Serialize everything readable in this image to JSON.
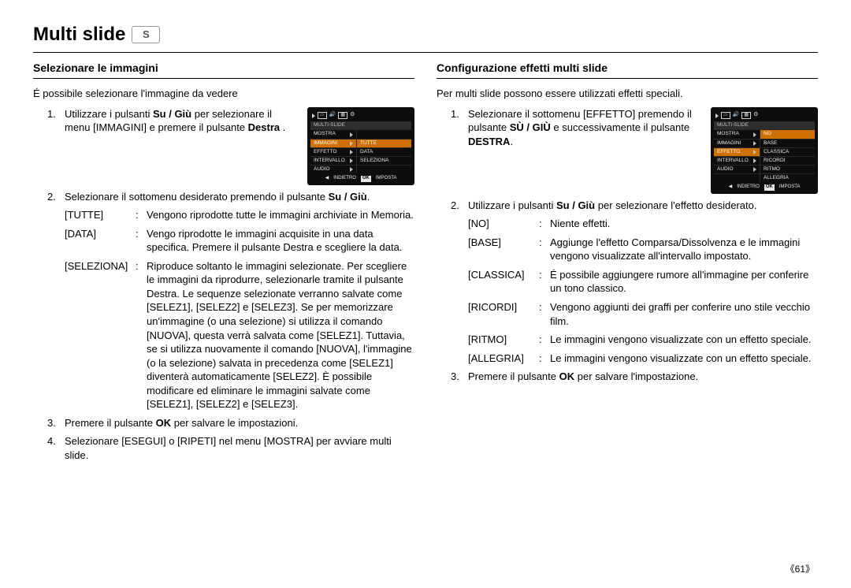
{
  "page": {
    "title": "Multi slide",
    "title_badge": "S",
    "page_number": "《61》"
  },
  "left": {
    "heading": "Selezionare le immagini",
    "intro": "É possibile selezionare l'immagine da vedere",
    "step1_pre": "Utilizzare i pulsanti ",
    "step1_b1": "Su / Giù",
    "step1_mid": " per selezionare il menu  [IMMAGINI] e premere il pulsante ",
    "step1_b2": "Destra",
    "step1_post": " .",
    "step2_pre": "Selezionare il sottomenu desiderato premendo il pulsante ",
    "step2_b": "Su / Giù",
    "step2_post": ".",
    "defs": [
      {
        "key": "[TUTTE]",
        "val": "Vengono riprodotte tutte le immagini archiviate in Memoria."
      },
      {
        "key": "[DATA]",
        "val": "Vengo riprodotte le immagini acquisite in una data specifica. Premere il pulsante Destra e scegliere la data."
      },
      {
        "key": "[SELEZIONA]",
        "val": "Riproduce soltanto le immagini selezionate. Per scegliere le immagini da riprodurre, selezionarle tramite il pulsante Destra. Le sequenze selezionate verranno salvate come [SELEZ1], [SELEZ2] e [SELEZ3]. Se per memorizzare un'immagine (o una selezione) si utilizza il comando [NUOVA], questa verrà salvata come [SELEZ1]. Tuttavia, se si utilizza nuovamente il comando [NUOVA], l'immagine (o la selezione) salvata in precedenza come [SELEZ1] diventerà automaticamente [SELEZ2]. È possibile modificare ed eliminare le immagini  salvate come [SELEZ1], [SELEZ2] e [SELEZ3]."
      }
    ],
    "step3_pre": "Premere il pulsante ",
    "step3_b": "OK",
    "step3_post": " per salvare le impostazioni.",
    "step4": "Selezionare [ESEGUI] o [RIPETI] nel menu [MOSTRA] per avviare multi slide.",
    "lcd": {
      "section": "MULTI-SLIDE",
      "rows": [
        {
          "l": "MOSTRA",
          "r": "",
          "arrow": true
        },
        {
          "l": "IMMAGINI",
          "r": "TUTTE",
          "arrow": true,
          "activeL": true,
          "activeR": true
        },
        {
          "l": "EFFETTO",
          "r": "DATA",
          "arrow": true
        },
        {
          "l": "INTERVALLO",
          "r": "SELEZIONA",
          "arrow": true
        },
        {
          "l": "AUDIO",
          "r": "",
          "arrow": true
        }
      ],
      "footer_back": "INDIETRO",
      "footer_ok": "OK",
      "footer_set": "IMPOSTA"
    }
  },
  "right": {
    "heading": "Configurazione effetti multi slide",
    "intro": "Per multi slide possono essere utilizzati effetti speciali.",
    "step1_pre": "Selezionare il sottomenu [EFFETTO] premendo il pulsante ",
    "step1_b1": "SÙ / GIÙ",
    "step1_mid": " e successivamente il pulsante ",
    "step1_b2": "DESTRA",
    "step1_post": ".",
    "step2_pre": "Utilizzare i pulsanti  ",
    "step2_b": "Su / Giù",
    "step2_post": " per selezionare l'effetto desiderato.",
    "defs": [
      {
        "key": "[NO]",
        "val": "Niente effetti."
      },
      {
        "key": "[BASE]",
        "val": "Aggiunge l'effetto Comparsa/Dissolvenza e le immagini vengono visualizzate all'intervallo impostato."
      },
      {
        "key": "[CLASSICA]",
        "val": "É possibile aggiungere rumore all'immagine per conferire un tono classico."
      },
      {
        "key": "[RICORDI]",
        "val": "Vengono aggiunti dei graffi per conferire uno stile vecchio film."
      },
      {
        "key": "[RITMO]",
        "val": "Le immagini vengono visualizzate con un effetto speciale."
      },
      {
        "key": "[ALLEGRIA]",
        "val": "Le immagini vengono visualizzate con un effetto speciale."
      }
    ],
    "step3_pre": "Premere il pulsante ",
    "step3_b": "OK",
    "step3_post": " per salvare l'impostazione.",
    "lcd": {
      "section": "MULTI-SLIDE",
      "rows": [
        {
          "l": "MOSTRA",
          "r": "NO",
          "arrow": true,
          "activeR": true
        },
        {
          "l": "IMMAGINI",
          "r": "BASE",
          "arrow": true
        },
        {
          "l": "EFFETTO",
          "r": "CLASSICA",
          "arrow": true,
          "activeL": true
        },
        {
          "l": "INTERVALLO",
          "r": "RICORDI",
          "arrow": true
        },
        {
          "l": "AUDIO",
          "r": "RITMO",
          "arrow": true
        },
        {
          "l": "",
          "r": "ALLEGRIA"
        }
      ],
      "footer_back": "INDIETRO",
      "footer_ok": "OK",
      "footer_set": "IMPOSTA"
    }
  }
}
